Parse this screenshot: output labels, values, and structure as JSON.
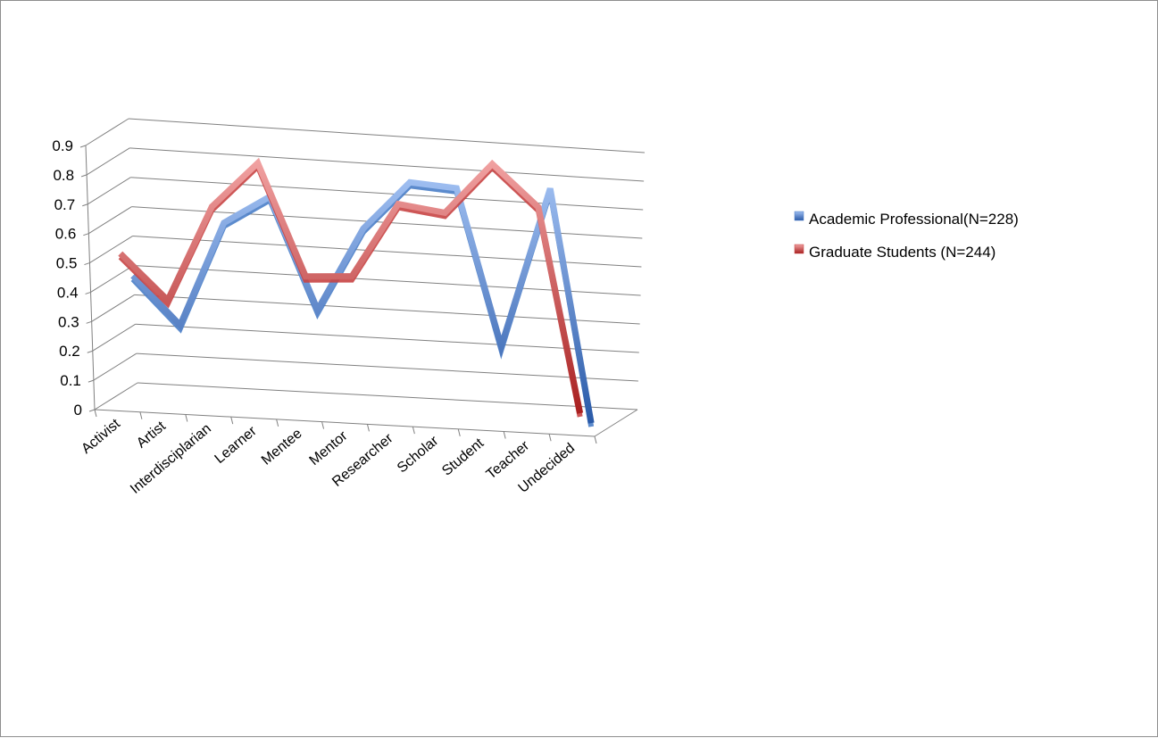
{
  "chart_data": {
    "type": "line",
    "style": "3d-line",
    "categories": [
      "Activist",
      "Artist",
      "Interdisciplarian",
      "Learner",
      "Mentee",
      "Mentor",
      "Researcher",
      "Scholar",
      "Student",
      "Teacher",
      "Undecided"
    ],
    "series": [
      {
        "name": "Academic Professional(N=228)",
        "values": [
          0.42,
          0.26,
          0.62,
          0.72,
          0.34,
          0.63,
          0.8,
          0.79,
          0.25,
          0.81,
          0.0
        ],
        "color": "#4a7ec8"
      },
      {
        "name": "Graduate Students (N=244)",
        "values": [
          0.52,
          0.37,
          0.7,
          0.86,
          0.48,
          0.49,
          0.75,
          0.73,
          0.91,
          0.77,
          0.06
        ],
        "color": "#c84444"
      }
    ],
    "yticks": [
      "0",
      "0.1",
      "0.2",
      "0.3",
      "0.4",
      "0.5",
      "0.6",
      "0.7",
      "0.8",
      "0.9"
    ],
    "ylim": [
      0,
      0.9
    ],
    "grid": true,
    "legend": "right"
  }
}
